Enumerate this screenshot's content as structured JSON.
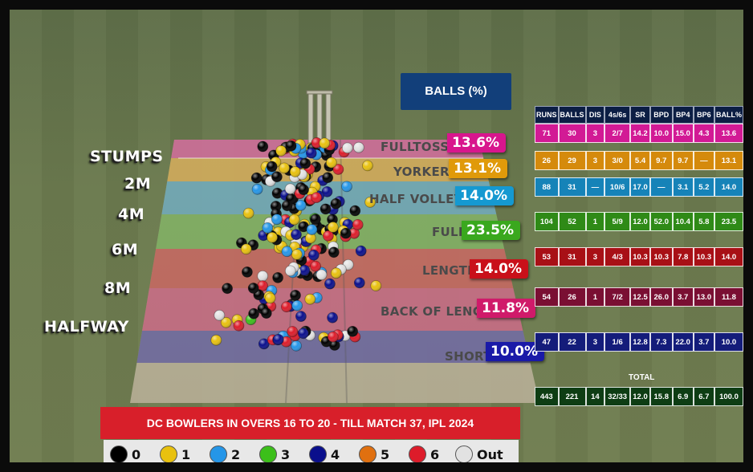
{
  "balls_title": "BALLS (%)",
  "distance_labels": [
    "STUMPS",
    "2M",
    "4M",
    "6M",
    "8M",
    "HALFWAY"
  ],
  "zones": [
    {
      "name": "FULLTOSS",
      "pct": "13.6%",
      "color": "#d8168d"
    },
    {
      "name": "YORKER",
      "pct": "13.1%",
      "color": "#e09a0a"
    },
    {
      "name": "HALF VOLLEY",
      "pct": "14.0%",
      "color": "#1599d1"
    },
    {
      "name": "FULL",
      "pct": "23.5%",
      "color": "#3aa81e"
    },
    {
      "name": "LENGTH",
      "pct": "14.0%",
      "color": "#c9101a"
    },
    {
      "name": "BACK OF LENGTH",
      "pct": "11.8%",
      "color": "#d01a6a"
    },
    {
      "name": "SHORT",
      "pct": "10.0%",
      "color": "#1a1aa8"
    }
  ],
  "table": {
    "headers": [
      "RUNS",
      "BALLS",
      "DIS",
      "4s/6s",
      "SR",
      "BPD",
      "BP4",
      "BP6",
      "BALL%"
    ],
    "rows": [
      {
        "color": "#d21a95",
        "cells": [
          "71",
          "30",
          "3",
          "2/7",
          "14.2",
          "10.0",
          "15.0",
          "4.3",
          "13.6"
        ]
      },
      {
        "color": "#d58a0c",
        "cells": [
          "26",
          "29",
          "3",
          "3/0",
          "5.4",
          "9.7",
          "9.7",
          "—",
          "13.1"
        ]
      },
      {
        "color": "#1683b8",
        "cells": [
          "88",
          "31",
          "—",
          "10/6",
          "17.0",
          "—",
          "3.1",
          "5.2",
          "14.0"
        ]
      },
      {
        "color": "#2f8a17",
        "cells": [
          "104",
          "52",
          "1",
          "5/9",
          "12.0",
          "52.0",
          "10.4",
          "5.8",
          "23.5"
        ]
      },
      {
        "color": "#a81016",
        "cells": [
          "53",
          "31",
          "3",
          "4/3",
          "10.3",
          "10.3",
          "7.8",
          "10.3",
          "14.0"
        ]
      },
      {
        "color": "#7a0f33",
        "cells": [
          "54",
          "26",
          "1",
          "7/2",
          "12.5",
          "26.0",
          "3.7",
          "13.0",
          "11.8"
        ]
      },
      {
        "color": "#141c7a",
        "cells": [
          "47",
          "22",
          "3",
          "1/6",
          "12.8",
          "7.3",
          "22.0",
          "3.7",
          "10.0"
        ]
      }
    ],
    "total_label": "TOTAL",
    "total": {
      "color": "#0e3d14",
      "cells": [
        "443",
        "221",
        "14",
        "32/33",
        "12.0",
        "15.8",
        "6.9",
        "6.7",
        "100.0"
      ]
    }
  },
  "caption": "DC BOWLERS IN OVERS 16 TO 20 - TILL MATCH 37, IPL 2024",
  "legend": [
    {
      "label": "0",
      "color": "#000000"
    },
    {
      "label": "1",
      "color": "#e8c10f"
    },
    {
      "label": "2",
      "color": "#2596e8"
    },
    {
      "label": "3",
      "color": "#3cbf1a"
    },
    {
      "label": "4",
      "color": "#0a0f8c"
    },
    {
      "label": "5",
      "color": "#e07010"
    },
    {
      "label": "6",
      "color": "#dd1c2a"
    },
    {
      "label": "Out",
      "color": "#e2e2e2"
    }
  ],
  "chart_data": {
    "type": "scatter",
    "title": "DC BOWLERS IN OVERS 16 TO 20 - TILL MATCH 37, IPL 2024",
    "zone_ball_pct": [
      {
        "zone": "FULLTOSS",
        "pct": 13.6
      },
      {
        "zone": "YORKER",
        "pct": 13.1
      },
      {
        "zone": "HALF VOLLEY",
        "pct": 14.0
      },
      {
        "zone": "FULL",
        "pct": 23.5
      },
      {
        "zone": "LENGTH",
        "pct": 14.0
      },
      {
        "zone": "BACK OF LENGTH",
        "pct": 11.8
      },
      {
        "zone": "SHORT",
        "pct": 10.0
      }
    ],
    "total_balls": 221,
    "seed": 37,
    "zone_counts": [
      30,
      29,
      31,
      52,
      31,
      26,
      22
    ],
    "legend": [
      "0",
      "1",
      "2",
      "3",
      "4",
      "5",
      "6",
      "Out"
    ]
  }
}
